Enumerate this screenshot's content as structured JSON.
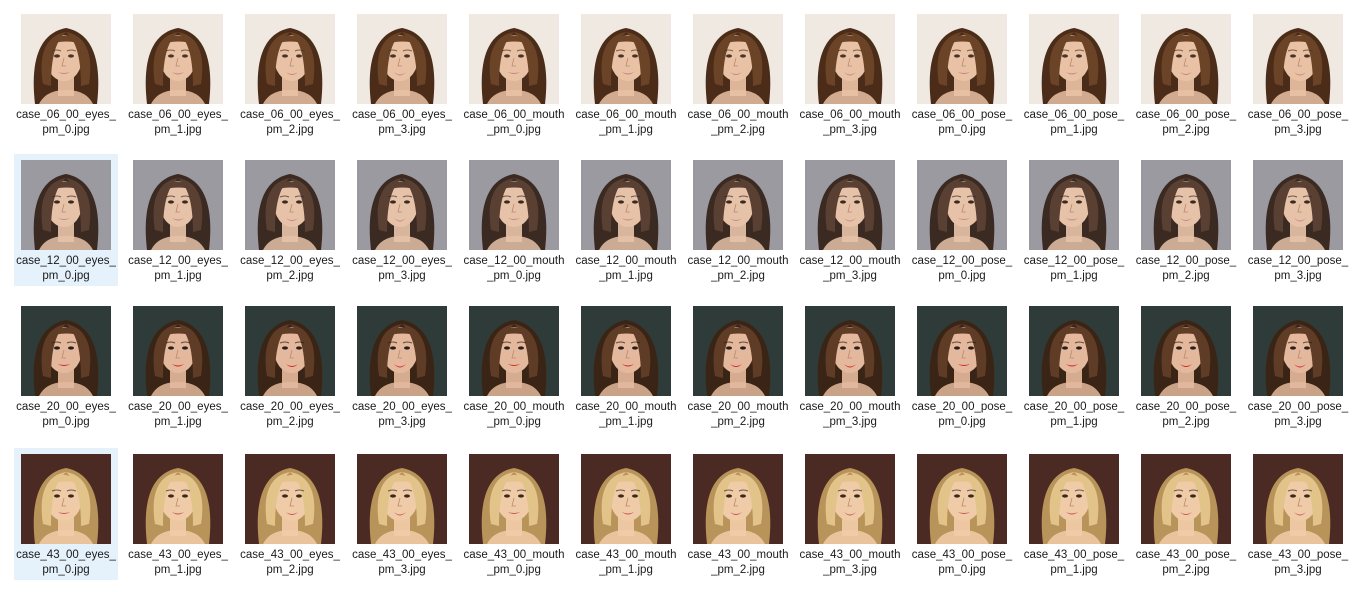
{
  "window": {
    "view": "large-icons"
  },
  "rows": [
    {
      "theme": {
        "bg": "#efe9e2",
        "hair": "#6b4428",
        "hair_dark": "#4a2c18",
        "skin": "#e9c2a6",
        "lip": "#c9837a",
        "eye": "#4a3426"
      },
      "files": [
        {
          "name": "case_06_00_eyes_pm_0.jpg",
          "selected": false
        },
        {
          "name": "case_06_00_eyes_pm_1.jpg",
          "selected": false
        },
        {
          "name": "case_06_00_eyes_pm_2.jpg",
          "selected": false
        },
        {
          "name": "case_06_00_eyes_pm_3.jpg",
          "selected": false
        },
        {
          "name": "case_06_00_mouth_pm_0.jpg",
          "selected": false
        },
        {
          "name": "case_06_00_mouth_pm_1.jpg",
          "selected": false
        },
        {
          "name": "case_06_00_mouth_pm_2.jpg",
          "selected": false
        },
        {
          "name": "case_06_00_mouth_pm_3.jpg",
          "selected": false
        },
        {
          "name": "case_06_00_pose_pm_0.jpg",
          "selected": false
        },
        {
          "name": "case_06_00_pose_pm_1.jpg",
          "selected": false
        },
        {
          "name": "case_06_00_pose_pm_2.jpg",
          "selected": false
        },
        {
          "name": "case_06_00_pose_pm_3.jpg",
          "selected": false
        }
      ]
    },
    {
      "theme": {
        "bg": "#9a9aa0",
        "hair": "#5a4032",
        "hair_dark": "#3a2a22",
        "skin": "#e6c2a8",
        "lip": "#c98a84",
        "eye": "#3a2a22"
      },
      "files": [
        {
          "name": "case_12_00_eyes_pm_0.jpg",
          "selected": true
        },
        {
          "name": "case_12_00_eyes_pm_1.jpg",
          "selected": false
        },
        {
          "name": "case_12_00_eyes_pm_2.jpg",
          "selected": false
        },
        {
          "name": "case_12_00_eyes_pm_3.jpg",
          "selected": false
        },
        {
          "name": "case_12_00_mouth_pm_0.jpg",
          "selected": false
        },
        {
          "name": "case_12_00_mouth_pm_1.jpg",
          "selected": false
        },
        {
          "name": "case_12_00_mouth_pm_2.jpg",
          "selected": false
        },
        {
          "name": "case_12_00_mouth_pm_3.jpg",
          "selected": false
        },
        {
          "name": "case_12_00_pose_pm_0.jpg",
          "selected": false
        },
        {
          "name": "case_12_00_pose_pm_1.jpg",
          "selected": false
        },
        {
          "name": "case_12_00_pose_pm_2.jpg",
          "selected": false
        },
        {
          "name": "case_12_00_pose_pm_3.jpg",
          "selected": false
        }
      ]
    },
    {
      "theme": {
        "bg": "#2f3b38",
        "hair": "#5e3c26",
        "hair_dark": "#3a2416",
        "skin": "#e4b89c",
        "lip": "#d42a2a",
        "eye": "#2a1e18"
      },
      "files": [
        {
          "name": "case_20_00_eyes_pm_0.jpg",
          "selected": false
        },
        {
          "name": "case_20_00_eyes_pm_1.jpg",
          "selected": false
        },
        {
          "name": "case_20_00_eyes_pm_2.jpg",
          "selected": false
        },
        {
          "name": "case_20_00_eyes_pm_3.jpg",
          "selected": false
        },
        {
          "name": "case_20_00_mouth_pm_0.jpg",
          "selected": false
        },
        {
          "name": "case_20_00_mouth_pm_1.jpg",
          "selected": false
        },
        {
          "name": "case_20_00_mouth_pm_2.jpg",
          "selected": false
        },
        {
          "name": "case_20_00_mouth_pm_3.jpg",
          "selected": false
        },
        {
          "name": "case_20_00_pose_pm_0.jpg",
          "selected": false
        },
        {
          "name": "case_20_00_pose_pm_1.jpg",
          "selected": false
        },
        {
          "name": "case_20_00_pose_pm_2.jpg",
          "selected": false
        },
        {
          "name": "case_20_00_pose_pm_3.jpg",
          "selected": false
        }
      ]
    },
    {
      "theme": {
        "bg": "#4a2a22",
        "hair": "#e2c48a",
        "hair_dark": "#b8935a",
        "skin": "#f0cba8",
        "lip": "#c85a52",
        "eye": "#3a2a1e"
      },
      "files": [
        {
          "name": "case_43_00_eyes_pm_0.jpg",
          "selected": true
        },
        {
          "name": "case_43_00_eyes_pm_1.jpg",
          "selected": false
        },
        {
          "name": "case_43_00_eyes_pm_2.jpg",
          "selected": false
        },
        {
          "name": "case_43_00_eyes_pm_3.jpg",
          "selected": false
        },
        {
          "name": "case_43_00_mouth_pm_0.jpg",
          "selected": false
        },
        {
          "name": "case_43_00_mouth_pm_1.jpg",
          "selected": false
        },
        {
          "name": "case_43_00_mouth_pm_2.jpg",
          "selected": false
        },
        {
          "name": "case_43_00_mouth_pm_3.jpg",
          "selected": false
        },
        {
          "name": "case_43_00_pose_pm_0.jpg",
          "selected": false
        },
        {
          "name": "case_43_00_pose_pm_1.jpg",
          "selected": false
        },
        {
          "name": "case_43_00_pose_pm_2.jpg",
          "selected": false
        },
        {
          "name": "case_43_00_pose_pm_3.jpg",
          "selected": false
        }
      ]
    }
  ]
}
